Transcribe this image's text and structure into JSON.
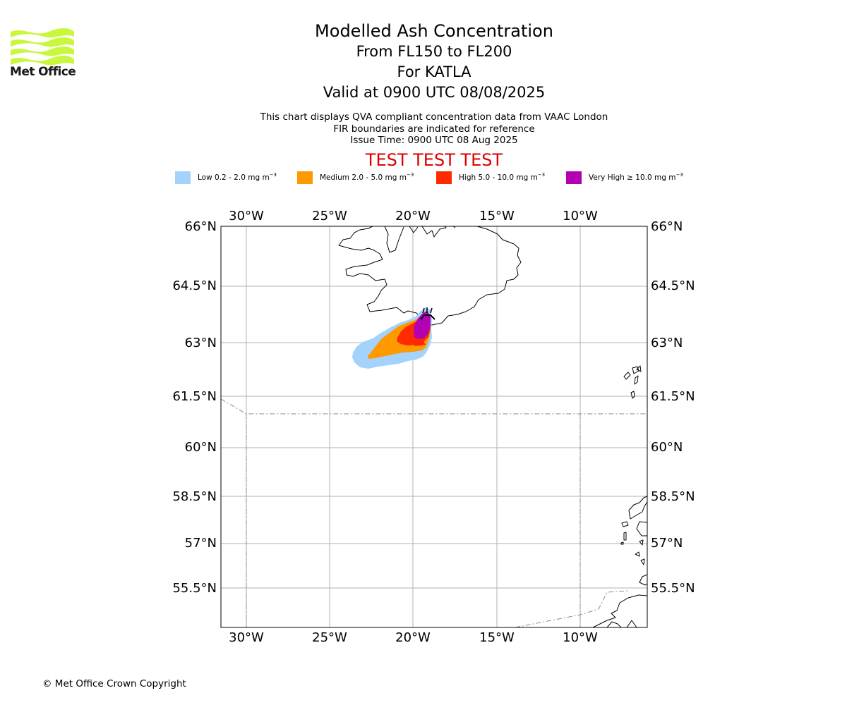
{
  "header": {
    "logo_text": "Met Office",
    "title": "Modelled Ash Concentration",
    "subtitle_levels": "From FL150 to FL200",
    "subtitle_volcano": "For KATLA",
    "subtitle_valid": "Valid at 0900 UTC 08/08/2025"
  },
  "notes": {
    "line1": "This chart displays QVA compliant concentration data from VAAC London",
    "line2": "FIR boundaries are indicated for reference",
    "line3": "Issue Time: 0900 UTC 08 Aug 2025"
  },
  "test_banner": "TEST TEST TEST",
  "legend": [
    {
      "label": "Low 0.2 - 2.0 mg m",
      "exp": "−3",
      "color": "#a3d3fb"
    },
    {
      "label": "Medium 2.0 - 5.0 mg m",
      "exp": "−3",
      "color": "#ff9900"
    },
    {
      "label": "High 5.0 - 10.0 mg m",
      "exp": "−3",
      "color": "#ff2a00"
    },
    {
      "label": "Very High  ≥  10.0 mg m",
      "exp": "−3",
      "color": "#b200b2"
    }
  ],
  "map": {
    "lon_ticks": [
      "30°W",
      "25°W",
      "20°W",
      "15°W",
      "10°W"
    ],
    "lat_ticks": [
      "66°N",
      "64.5°N",
      "63°N",
      "61.5°N",
      "60°N",
      "58.5°N",
      "57°N",
      "55.5°N"
    ],
    "volcano_icon": "volcano-icon"
  },
  "footer": {
    "copyright": "© Met Office Crown Copyright"
  }
}
